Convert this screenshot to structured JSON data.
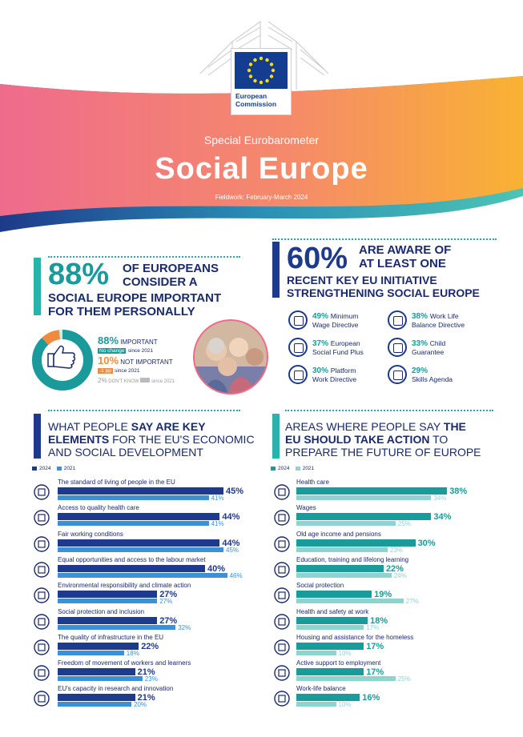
{
  "header": {
    "logo_text_line1": "European",
    "logo_text_line2": "Commission",
    "subtitle": "Special Eurobarometer",
    "title": "Social Europe",
    "fieldwork": "Fieldwork: February-March 2024",
    "colors": {
      "pink": "#ee6b8a",
      "orange": "#f7a33c",
      "teal": "#2ab3ad",
      "navy": "#1a2a6c"
    }
  },
  "important": {
    "big": "88%",
    "line1a": "OF EUROPEANS",
    "line1b": "CONSIDER A",
    "line2": "SOCIAL EUROPE IMPORTANT",
    "line3": "FOR THEM PERSONALLY",
    "donut_important_pct": 88,
    "donut_not_important_pct": 10,
    "legend": {
      "important_val": "88%",
      "important_label": "IMPORTANT",
      "important_change": "No change",
      "important_since": "since 2021",
      "not_val": "10%",
      "not_label": "NOT IMPORTANT",
      "not_change": "-1 pp",
      "not_since": "since 2021",
      "dk_val": "2%",
      "dk_label": "DON'T KNOW",
      "dk_change": "",
      "dk_since": "since 2021"
    },
    "icon": "thumbs-up-icon"
  },
  "aware": {
    "big": "60%",
    "line1": "ARE AWARE OF",
    "line2": "AT LEAST ONE",
    "line3": "RECENT KEY EU INITIATIVE",
    "line4": "STRENGTHENING SOCIAL EUROPE",
    "initiatives": [
      {
        "pct": "49%",
        "l1": "Minimum",
        "l2": "Wage Directive"
      },
      {
        "pct": "38%",
        "l1": "Work Life",
        "l2": "Balance Directive"
      },
      {
        "pct": "37%",
        "l1": "European",
        "l2": "Social Fund Plus"
      },
      {
        "pct": "33%",
        "l1": "Child",
        "l2": "Guarantee"
      },
      {
        "pct": "30%",
        "l1": "Platform",
        "l2": "Work Directive"
      },
      {
        "pct": "29%",
        "l1": "",
        "l2": "Skills Agenda"
      }
    ]
  },
  "key_elements": {
    "title_l1a": "WHAT PEOPLE ",
    "title_l1b": "SAY ARE KEY",
    "title_l2a": "ELEMENTS",
    "title_l2b": " FOR THE EU'S ECONOMIC",
    "title_l3": "AND SOCIAL DEVELOPMENT",
    "legend_2024": "2024",
    "legend_2021": "2021"
  },
  "eu_action": {
    "title_l1a": "AREAS WHERE PEOPLE SAY ",
    "title_l1b": "THE",
    "title_l2a": "EU SHOULD TAKE ACTION",
    "title_l2b": " TO",
    "title_l3": "PREPARE THE FUTURE OF EUROPE",
    "legend_2024": "2024",
    "legend_2021": "2021"
  },
  "chart_data": [
    {
      "type": "bar",
      "categories": [
        "The standard of living of people in the EU",
        "Access to quality health care",
        "Fair working conditions",
        "Equal opportunities and access to the labour market",
        "Environmental responsibility and climate action",
        "Social protection and inclusion",
        "The quality of infrastructure in the EU",
        "Freedom of movement of workers and learners",
        "EU's capacity in research and innovation"
      ],
      "series": [
        {
          "name": "2024",
          "values": [
            45,
            44,
            44,
            40,
            27,
            27,
            22,
            21,
            21
          ]
        },
        {
          "name": "2021",
          "values": [
            41,
            41,
            45,
            46,
            27,
            32,
            18,
            23,
            20
          ]
        }
      ],
      "colors": {
        "2024": "#1e3a8a",
        "2021": "#3d8fd6"
      },
      "xlim": [
        0,
        50
      ]
    },
    {
      "type": "bar",
      "categories": [
        "Health care",
        "Wages",
        "Old age income and pensions",
        "Education, training and lifelong learning",
        "Social protection",
        "Health and safety at work",
        "Housing and assistance for the homeless",
        "Active support to employment",
        "Work-life balance"
      ],
      "series": [
        {
          "name": "2024",
          "values": [
            38,
            34,
            30,
            22,
            19,
            18,
            17,
            17,
            16
          ]
        },
        {
          "name": "2021",
          "values": [
            34,
            25,
            23,
            24,
            27,
            17,
            10,
            25,
            10
          ]
        }
      ],
      "colors": {
        "2024": "#1a9a9a",
        "2021": "#8fd3cf"
      },
      "xlim": [
        0,
        42
      ]
    }
  ]
}
